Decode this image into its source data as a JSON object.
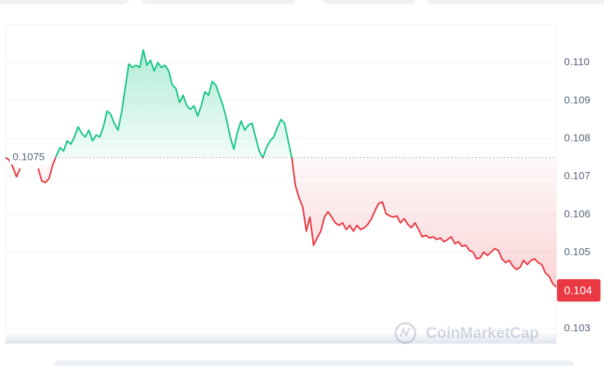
{
  "chart_data": {
    "type": "line",
    "values": [
      0.1075,
      0.10743,
      0.10725,
      0.10699,
      0.10721,
      null,
      null,
      null,
      null,
      0.10721,
      0.10688,
      0.10684,
      0.10695,
      0.1073,
      0.10754,
      0.10776,
      0.10767,
      0.10794,
      0.10785,
      0.10804,
      0.10831,
      0.10813,
      0.10804,
      0.10822,
      0.10794,
      0.10809,
      0.10804,
      0.10831,
      0.10872,
      0.10864,
      0.1084,
      0.10822,
      0.10868,
      0.10932,
      0.10996,
      0.10987,
      0.10993,
      0.10987,
      0.11033,
      0.10993,
      0.11006,
      0.10978,
      0.11,
      0.10987,
      0.10993,
      0.10978,
      0.10941,
      0.10932,
      0.10895,
      0.10914,
      0.10886,
      0.10877,
      0.10886,
      0.10859,
      0.10886,
      0.10923,
      0.10914,
      0.1095,
      0.10941,
      0.10914,
      0.10886,
      0.1085,
      0.10804,
      0.10772,
      0.10817,
      0.10846,
      0.10822,
      0.10835,
      0.1084,
      0.10804,
      0.10767,
      0.10749,
      0.10776,
      0.10794,
      0.10804,
      0.10828,
      0.1085,
      0.1084,
      0.10794,
      0.10749,
      0.10675,
      0.10644,
      0.1062,
      0.10556,
      0.10593,
      0.10519,
      0.10538,
      0.10556,
      0.10593,
      0.10607,
      0.10593,
      0.10578,
      0.10571,
      0.10578,
      0.1056,
      0.10571,
      0.10556,
      0.10571,
      0.1056,
      0.10565,
      0.10574,
      0.10589,
      0.10611,
      0.10629,
      0.10633,
      0.10602,
      0.10596,
      0.10593,
      0.10596,
      0.10578,
      0.10589,
      0.10574,
      0.10565,
      0.10578,
      0.1056,
      0.10541,
      0.10545,
      0.10538,
      0.10541,
      0.10534,
      0.10538,
      0.10528,
      0.10534,
      0.10541,
      0.10523,
      0.10528,
      0.10516,
      0.10519,
      0.10505,
      0.10501,
      0.10483,
      0.10486,
      0.10501,
      0.10492,
      0.10501,
      0.1051,
      0.10505,
      0.10483,
      0.10473,
      0.10479,
      0.10464,
      0.10455,
      0.10461,
      0.10479,
      0.10468,
      0.10479,
      0.10483,
      0.10473,
      0.10468,
      0.10446,
      0.10437,
      0.10418,
      0.10409
    ],
    "baseline": 0.1075,
    "price_label": 0.104,
    "up_color": "#16c784",
    "down_color": "#ea3943",
    "ylim": [
      0.1026,
      0.111
    ],
    "yticks": [
      {
        "value": 0.11,
        "label": "0.110"
      },
      0.109,
      0.108,
      0.107,
      0.106,
      0.105,
      0.103
    ],
    "grid": true,
    "watermark": "CoinMarketCap"
  }
}
